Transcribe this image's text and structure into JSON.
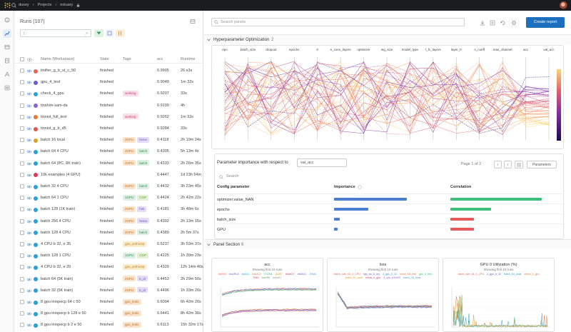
{
  "topbar": {
    "crumbs": [
      "dusey",
      "Projects",
      "estuary"
    ]
  },
  "runs": {
    "title": "Runs (107)",
    "search_placeholder": "(..",
    "columns": [
      "Name (Workspace)",
      "State",
      "Tags",
      "acc",
      "Runtime"
    ],
    "rows": [
      {
        "name": "tinifier_g_b_st_c_50",
        "state": "finished",
        "tags": [],
        "acc": "0.9905",
        "runtime": "26 s3s",
        "color": "#e26a58"
      },
      {
        "name": "gpu_4_test",
        "state": "finished",
        "tags": [],
        "acc": "0.9049",
        "runtime": "1m 32s",
        "color": "#6d5bd0"
      },
      {
        "name": "check_4_gpu",
        "state": "finished",
        "tags": [
          "working"
        ],
        "acc": "0.9207",
        "runtime": "33s",
        "color": "#2b9fd9"
      },
      {
        "name": "tinshim-sam-da",
        "state": "finished",
        "tags": [],
        "acc": "0.9199",
        "runtime": "4h",
        "color": "#8a63d2"
      },
      {
        "name": "tinnist_full_test",
        "state": "finished",
        "tags": [
          "working"
        ],
        "acc": "0.9262",
        "runtime": "1m 33s",
        "color": "#e07a3e"
      },
      {
        "name": "tinnist_g_b_d5",
        "state": "finished",
        "tags": [],
        "acc": "0.9284",
        "runtime": "33s",
        "color": "#e05a4a"
      },
      {
        "name": "batch 16 local",
        "state": "finished",
        "tags": [
          "2GPU",
          "None"
        ],
        "acc": "0.4118",
        "runtime": "2h 19m 24s",
        "color": "#d9a22e"
      },
      {
        "name": "batch 64 4 CPU",
        "state": "finished",
        "tags": [
          "4GPU",
          "batch"
        ],
        "acc": "0.4305",
        "runtime": "5h 13m 4s",
        "color": "#2b9fd9"
      },
      {
        "name": "batch 64 (PC, 8K train)",
        "state": "finished",
        "tags": [
          "4GPU",
          "batch"
        ],
        "acc": "0.4333",
        "runtime": "2h 26m 35s",
        "color": "#2b9fd9"
      },
      {
        "name": "10k examples (4 GPU)",
        "state": "finished",
        "tags": [],
        "acc": "0.4447",
        "runtime": "1d 23h 54m",
        "color": "#e03a5a"
      },
      {
        "name": "batch 32 4 CPU",
        "state": "finished",
        "tags": [
          "4GPU",
          "batch"
        ],
        "acc": "0.4432",
        "runtime": "3h 23m 45s",
        "color": "#2b9fd9"
      },
      {
        "name": "batch 64 1 CPU",
        "state": "finished",
        "tags": [
          "1GPU",
          "CGP"
        ],
        "acc": "0.4424",
        "runtime": "2h 42m 22s",
        "color": "#2b9fd9"
      },
      {
        "name": "batch 128 (1K train)",
        "state": "finished",
        "tags": [
          "2GPU",
          "hist"
        ],
        "acc": "0.4181",
        "runtime": "3h 48m 6s",
        "color": "#2b9fd9"
      },
      {
        "name": "batch 256 4 CPU",
        "state": "finished",
        "tags": [
          "2GPU",
          "None"
        ],
        "acc": "0.4392",
        "runtime": "2h 13m 15s",
        "color": "#2b9fd9"
      },
      {
        "name": "batch 128 4 CPU",
        "state": "finished",
        "tags": [
          "4GPU",
          "batch"
        ],
        "acc": "0.4389",
        "runtime": "2h 5m 37s",
        "color": "#2b9fd9"
      },
      {
        "name": "4 CPU b 32, e 35",
        "state": "finished",
        "tags": [
          "gpu_anthusta"
        ],
        "acc": "0.5237",
        "runtime": "3h 53m 37s",
        "color": "#2b9fd9"
      },
      {
        "name": "batch 128 1 CPU",
        "state": "finished",
        "tags": [
          "1GPU",
          "CGP"
        ],
        "acc": "0.4225",
        "runtime": "1h 39m 23s",
        "color": "#2b9fd9"
      },
      {
        "name": "4 CPU b 32, e 20",
        "state": "finished",
        "tags": [
          "gpu_anthusta"
        ],
        "acc": "0.4329",
        "runtime": "12h 14m 40s",
        "color": "#2b9fd9"
      },
      {
        "name": "batch 64 (5K train)",
        "state": "finished",
        "tags": [
          "2GPU",
          "b_dr"
        ],
        "acc": "0.4453",
        "runtime": "2h 29m 50s",
        "color": "#2b9fd9"
      },
      {
        "name": "batch 32 (5K train)",
        "state": "finished",
        "tags": [
          "2GPU",
          "b_dr"
        ],
        "acc": "0.4496",
        "runtime": "1h 33m 20s",
        "color": "#2b9fd9"
      },
      {
        "name": "8 gpu inrspecp 64 c 50",
        "state": "finished",
        "tags": [
          "gpu_tests"
        ],
        "acc": "0.6094",
        "runtime": "6h 42m 20s",
        "color": "#2b9fd9"
      },
      {
        "name": "8 gpu inrspecp b 128 e 50",
        "state": "finished",
        "tags": [
          "gpu_tests"
        ],
        "acc": "0.6441",
        "runtime": "8h 42m 30s",
        "color": "#2b9fd9"
      },
      {
        "name": "8 gpu inrspecp b 2 e 50",
        "state": "finished",
        "tags": [
          "gpu_tests"
        ],
        "acc": "0.6113",
        "runtime": "15h 32m 17s",
        "color": "#2b9fd9"
      }
    ]
  },
  "main": {
    "search_placeholder": "Search panels",
    "create_report": "Create report",
    "hyper_section": {
      "title": "Hyperparameter Optimization",
      "count": "2"
    },
    "panel_section": {
      "title": "Panel Section",
      "count": "6"
    },
    "parallel_axes": [
      "epo",
      "batch_size",
      "dropout",
      "epochs",
      "lr",
      "n_conv_layers",
      "optimizer",
      "ing_size",
      "model_type",
      "l_fc_layers",
      "layer_0",
      "n_coeff",
      "max_channel",
      "acc",
      "val_acc"
    ],
    "importance": {
      "title": "Parameter importance with respect to",
      "metric": "val_acc",
      "page": "Page 1 of 2",
      "search": "Search",
      "params_button": "Parameters",
      "headers": [
        "Config parameter",
        "Importance",
        "Correlation"
      ],
      "rows": [
        {
          "param": "optimizer.value_NAN",
          "importance": 0.68,
          "corr_color": "#3bbf7a",
          "corr": 0.85
        },
        {
          "param": "epochs",
          "importance": 0.32,
          "corr_color": "#3bbf7a",
          "corr": 0.38
        },
        {
          "param": "batch_size",
          "importance": 0.05,
          "corr_color": "#e85a5a",
          "corr": 0.22
        },
        {
          "param": "GPU",
          "importance": 0.03,
          "corr_color": "#e85a5a",
          "corr": 0.22
        }
      ]
    },
    "charts": [
      {
        "title": "acc",
        "subtitle": "Showing first 10 runs",
        "legend": [
          "bstrVf4",
          "bstzRL8",
          "stotrJ1",
          "bstcfLQ",
          "t7h2KB",
          "g1aR7",
          "bstwGY",
          "bst5k01",
          "Z9WA",
          "Pz6J",
          "tobuR6",
          "bshaE1"
        ]
      },
      {
        "title": "loss",
        "subtitle": "Showing first 10 runs",
        "legend": [
          "batch_size_64_4_CPU",
          "hyp_slc_b_dry",
          "4_gpu_b_32",
          "mnist_full_test",
          "gpu_4_test",
          "batch_64_local",
          "check_4_gpu",
          "4_cpu_b32e20",
          "batch_16_local"
        ]
      },
      {
        "title": "GPU 0 Utilization (%)",
        "subtitle": "Showing first 10 runs",
        "legend": [
          "batch_size_64_4_CPU",
          "4_gpu_b_32",
          "batch_64_local",
          "check_4_gpu"
        ]
      }
    ]
  }
}
